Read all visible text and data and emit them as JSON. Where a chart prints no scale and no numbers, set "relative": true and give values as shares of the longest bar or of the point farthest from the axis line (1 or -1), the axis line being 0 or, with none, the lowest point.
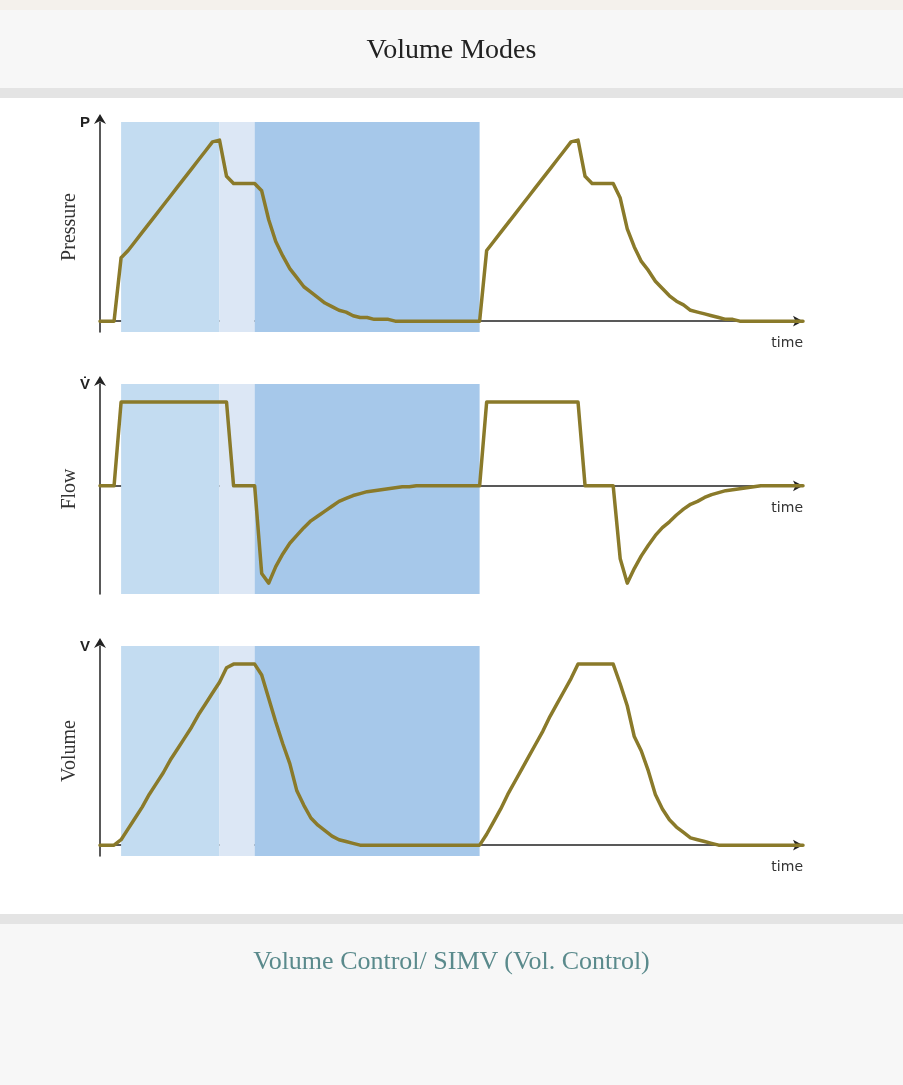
{
  "chart_data": [
    {
      "type": "line",
      "title": "Volume Modes",
      "ylabel": "Pressure",
      "xlabel": "time",
      "annotations": [
        "P"
      ],
      "relative": true,
      "categories": [
        null,
        null,
        null,
        null,
        null,
        null,
        null,
        null,
        null,
        null,
        null,
        null,
        null,
        null,
        null,
        null,
        null,
        null,
        null,
        null,
        null,
        null,
        null,
        null,
        null,
        null,
        null,
        null,
        null,
        null,
        null,
        null,
        null,
        null,
        null,
        null,
        null,
        null,
        null,
        null,
        null,
        null,
        null,
        null,
        null,
        null,
        null,
        null,
        null,
        null,
        null,
        null,
        null,
        null,
        null,
        null,
        null,
        null,
        null,
        null,
        null,
        null,
        null,
        null,
        null,
        null,
        null,
        null,
        null,
        null,
        null,
        null,
        null,
        null,
        null,
        null,
        null,
        null,
        null,
        null,
        null,
        null,
        null,
        null,
        null,
        null,
        null,
        null,
        null,
        null,
        null,
        null,
        null,
        null,
        null,
        null,
        null,
        null,
        null,
        null,
        null
      ],
      "marker": "none",
      "line_style": "solid",
      "series": [
        {
          "color": "#8a7a2a",
          "values": [
            0,
            0,
            0,
            0.35,
            0.39,
            0.44,
            0.49,
            0.54,
            0.59,
            0.64,
            0.69,
            0.74,
            0.79,
            0.84,
            0.89,
            0.94,
            0.99,
            1,
            0.8,
            0.76,
            0.76,
            0.76,
            0.76,
            0.72,
            0.56,
            0.44,
            0.36,
            0.29,
            0.24,
            0.19,
            0.16,
            0.13,
            0.1,
            0.08,
            0.06,
            0.05,
            0.03,
            0.02,
            0.02,
            0.01,
            0.01,
            0.01,
            0,
            0,
            0,
            0,
            0,
            0,
            0,
            0,
            0,
            0,
            0,
            0,
            0,
            0.39,
            0.44,
            0.49,
            0.54,
            0.59,
            0.64,
            0.69,
            0.74,
            0.79,
            0.84,
            0.89,
            0.94,
            0.99,
            1,
            0.8,
            0.76,
            0.76,
            0.76,
            0.76,
            0.68,
            0.51,
            0.41,
            0.33,
            0.28,
            0.22,
            0.18,
            0.14,
            0.11,
            0.09,
            0.06,
            0.05,
            0.04,
            0.03,
            0.02,
            0.01,
            0.01,
            0,
            0,
            0,
            0,
            0,
            0,
            0,
            0,
            0,
            0
          ]
        }
      ]
    },
    {
      "type": "line",
      "ylabel": "Flow",
      "xlabel": "time",
      "annotations": [
        "V̇"
      ],
      "relative": true,
      "categories": [
        null,
        null,
        null,
        null,
        null,
        null,
        null,
        null,
        null,
        null,
        null,
        null,
        null,
        null,
        null,
        null,
        null,
        null,
        null,
        null,
        null,
        null,
        null,
        null,
        null,
        null,
        null,
        null,
        null,
        null,
        null,
        null,
        null,
        null,
        null,
        null,
        null,
        null,
        null,
        null,
        null,
        null,
        null,
        null,
        null,
        null,
        null,
        null,
        null,
        null,
        null,
        null,
        null,
        null,
        null,
        null,
        null,
        null,
        null,
        null,
        null,
        null,
        null,
        null,
        null,
        null,
        null,
        null,
        null,
        null,
        null,
        null,
        null,
        null,
        null,
        null,
        null,
        null,
        null,
        null,
        null,
        null,
        null,
        null,
        null,
        null,
        null,
        null,
        null,
        null,
        null,
        null,
        null,
        null,
        null,
        null,
        null,
        null,
        null,
        null,
        null
      ],
      "marker": "none",
      "line_style": "solid",
      "series": [
        {
          "color": "#8a7a2a",
          "values": [
            0,
            0,
            0,
            0.86,
            0.86,
            0.86,
            0.86,
            0.86,
            0.86,
            0.86,
            0.86,
            0.86,
            0.86,
            0.86,
            0.86,
            0.86,
            0.86,
            0.86,
            0.86,
            0,
            0,
            0,
            0,
            -0.9,
            -1,
            -0.83,
            -0.7,
            -0.59,
            -0.51,
            -0.43,
            -0.36,
            -0.31,
            -0.26,
            -0.21,
            -0.16,
            -0.13,
            -0.1,
            -0.08,
            -0.06,
            -0.05,
            -0.04,
            -0.03,
            -0.02,
            -0.01,
            -0.01,
            0,
            0,
            0,
            0,
            0,
            0,
            0,
            0,
            0,
            0,
            0.86,
            0.86,
            0.86,
            0.86,
            0.86,
            0.86,
            0.86,
            0.86,
            0.86,
            0.86,
            0.86,
            0.86,
            0.86,
            0.86,
            0,
            0,
            0,
            0,
            0,
            -0.75,
            -1,
            -0.85,
            -0.72,
            -0.61,
            -0.51,
            -0.43,
            -0.37,
            -0.3,
            -0.24,
            -0.19,
            -0.16,
            -0.12,
            -0.09,
            -0.07,
            -0.05,
            -0.04,
            -0.03,
            -0.02,
            -0.01,
            0,
            0,
            0,
            0,
            0,
            0,
            0
          ]
        }
      ]
    },
    {
      "type": "line",
      "ylabel": "Volume",
      "xlabel": "time",
      "annotations": [
        "V",
        "Volume Control/ SIMV (Vol. Control)"
      ],
      "relative": true,
      "categories": [
        null,
        null,
        null,
        null,
        null,
        null,
        null,
        null,
        null,
        null,
        null,
        null,
        null,
        null,
        null,
        null,
        null,
        null,
        null,
        null,
        null,
        null,
        null,
        null,
        null,
        null,
        null,
        null,
        null,
        null,
        null,
        null,
        null,
        null,
        null,
        null,
        null,
        null,
        null,
        null,
        null,
        null,
        null,
        null,
        null,
        null,
        null,
        null,
        null,
        null,
        null,
        null,
        null,
        null,
        null,
        null,
        null,
        null,
        null,
        null,
        null,
        null,
        null,
        null,
        null,
        null,
        null,
        null,
        null,
        null,
        null,
        null,
        null,
        null,
        null,
        null,
        null,
        null,
        null,
        null,
        null,
        null,
        null,
        null,
        null,
        null,
        null,
        null,
        null,
        null,
        null,
        null,
        null,
        null,
        null,
        null,
        null,
        null,
        null,
        null,
        null
      ],
      "marker": "none",
      "line_style": "solid",
      "series": [
        {
          "color": "#8a7a2a",
          "values": [
            0,
            0,
            0,
            0.03,
            0.09,
            0.15,
            0.21,
            0.28,
            0.34,
            0.4,
            0.47,
            0.53,
            0.59,
            0.65,
            0.72,
            0.78,
            0.84,
            0.9,
            0.98,
            1,
            1,
            1,
            1,
            0.94,
            0.81,
            0.68,
            0.56,
            0.45,
            0.3,
            0.22,
            0.15,
            0.11,
            0.08,
            0.05,
            0.03,
            0.02,
            0.01,
            0,
            0,
            0,
            0,
            0,
            0,
            0,
            0,
            0,
            0,
            0,
            0,
            0,
            0,
            0,
            0,
            0,
            0,
            0.06,
            0.13,
            0.2,
            0.28,
            0.35,
            0.42,
            0.49,
            0.56,
            0.63,
            0.71,
            0.78,
            0.85,
            0.92,
            1,
            1,
            1,
            1,
            1,
            1,
            0.89,
            0.77,
            0.6,
            0.52,
            0.41,
            0.28,
            0.2,
            0.14,
            0.1,
            0.07,
            0.04,
            0.03,
            0.02,
            0.01,
            0,
            0,
            0,
            0,
            0,
            0,
            0,
            0,
            0,
            0,
            0,
            0,
            0
          ]
        }
      ]
    }
  ]
}
